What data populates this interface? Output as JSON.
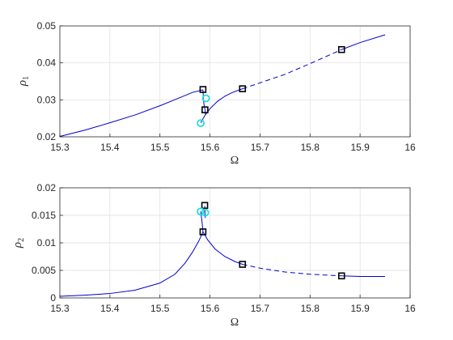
{
  "chart_data": [
    {
      "type": "line",
      "xlabel": "Ω",
      "ylabel": "ρ",
      "ylabel_sub": "1",
      "xlim": [
        15.3,
        16
      ],
      "ylim": [
        0.02,
        0.05
      ],
      "xticks": [
        "15.3",
        "15.4",
        "15.5",
        "15.6",
        "15.7",
        "15.8",
        "15.9",
        "16"
      ],
      "yticks": [
        "0.02",
        "0.03",
        "0.04",
        "0.05"
      ],
      "grid": true,
      "line_color": "#0000cc",
      "series": [
        {
          "style": "solid",
          "points": [
            [
              15.3,
              0.0201
            ],
            [
              15.35,
              0.0218
            ],
            [
              15.4,
              0.0238
            ],
            [
              15.45,
              0.0259
            ],
            [
              15.5,
              0.0284
            ],
            [
              15.54,
              0.0306
            ],
            [
              15.565,
              0.032
            ],
            [
              15.586,
              0.0327
            ]
          ]
        },
        {
          "style": "solid",
          "points": [
            [
              15.586,
              0.0327
            ],
            [
              15.5865,
              0.0313
            ],
            [
              15.587,
              0.0298
            ],
            [
              15.5885,
              0.0284
            ],
            [
              15.59,
              0.0274
            ]
          ]
        },
        {
          "style": "dashed",
          "points": [
            [
              15.59,
              0.0274
            ],
            [
              15.591,
              0.0262
            ],
            [
              15.5915,
              0.0254
            ]
          ]
        },
        {
          "style": "solid",
          "points": [
            [
              15.5815,
              0.0238
            ],
            [
              15.584,
              0.0244
            ],
            [
              15.59,
              0.0258
            ],
            [
              15.6,
              0.0276
            ],
            [
              15.615,
              0.0296
            ],
            [
              15.63,
              0.031
            ],
            [
              15.645,
              0.032
            ],
            [
              15.665,
              0.033
            ]
          ]
        },
        {
          "style": "dashed",
          "points": [
            [
              15.665,
              0.033
            ],
            [
              15.7,
              0.0346
            ],
            [
              15.75,
              0.0369
            ],
            [
              15.8,
              0.0398
            ],
            [
              15.84,
              0.0422
            ],
            [
              15.863,
              0.0436
            ]
          ]
        },
        {
          "style": "solid",
          "points": [
            [
              15.863,
              0.0436
            ],
            [
              15.9,
              0.0455
            ],
            [
              15.95,
              0.0476
            ]
          ]
        }
      ],
      "markers": {
        "squares": {
          "color": "#000000",
          "points": [
            [
              15.586,
              0.0328
            ],
            [
              15.59,
              0.0273
            ],
            [
              15.665,
              0.033
            ],
            [
              15.863,
              0.0436
            ]
          ]
        },
        "circles": {
          "color": "#22dddd",
          "points": [
            [
              15.5815,
              0.0237
            ],
            [
              15.592,
              0.0304
            ]
          ]
        }
      }
    },
    {
      "type": "line",
      "xlabel": "Ω",
      "ylabel": "ρ",
      "ylabel_sub": "2",
      "xlim": [
        15.3,
        16
      ],
      "ylim": [
        0,
        0.02
      ],
      "xticks": [
        "15.3",
        "15.4",
        "15.5",
        "15.6",
        "15.7",
        "15.8",
        "15.9",
        "16"
      ],
      "yticks": [
        "0",
        "0.005",
        "0.01",
        "0.015",
        "0.02"
      ],
      "grid": true,
      "line_color": "#0000cc",
      "series": [
        {
          "style": "solid",
          "points": [
            [
              15.3,
              0.0003
            ],
            [
              15.35,
              0.0005
            ],
            [
              15.4,
              0.0008
            ],
            [
              15.45,
              0.0014
            ],
            [
              15.5,
              0.0027
            ],
            [
              15.53,
              0.0043
            ],
            [
              15.55,
              0.0063
            ],
            [
              15.565,
              0.0083
            ],
            [
              15.578,
              0.0104
            ],
            [
              15.586,
              0.012
            ]
          ]
        },
        {
          "style": "solid",
          "points": [
            [
              15.586,
              0.012
            ],
            [
              15.5845,
              0.0135
            ],
            [
              15.5825,
              0.015
            ],
            [
              15.5815,
              0.0157
            ]
          ]
        },
        {
          "style": "solid",
          "points": [
            [
              15.5895,
              0.0167
            ],
            [
              15.5898,
              0.016
            ],
            [
              15.59,
              0.0154
            ]
          ]
        },
        {
          "style": "dashed",
          "points": [
            [
              15.59,
              0.0154
            ],
            [
              15.5902,
              0.015
            ],
            [
              15.5905,
              0.0145
            ]
          ]
        },
        {
          "style": "solid",
          "points": [
            [
              15.586,
              0.012
            ],
            [
              15.595,
              0.0106
            ],
            [
              15.61,
              0.0089
            ],
            [
              15.63,
              0.0075
            ],
            [
              15.65,
              0.0066
            ],
            [
              15.665,
              0.0061
            ]
          ]
        },
        {
          "style": "dashed",
          "points": [
            [
              15.665,
              0.0061
            ],
            [
              15.7,
              0.0054
            ],
            [
              15.75,
              0.0047
            ],
            [
              15.8,
              0.0043
            ],
            [
              15.863,
              0.004
            ]
          ]
        },
        {
          "style": "solid",
          "points": [
            [
              15.863,
              0.004
            ],
            [
              15.9,
              0.0039
            ],
            [
              15.95,
              0.0039
            ]
          ]
        }
      ],
      "markers": {
        "squares": {
          "color": "#000000",
          "points": [
            [
              15.586,
              0.012
            ],
            [
              15.5895,
              0.0168
            ],
            [
              15.665,
              0.0061
            ],
            [
              15.863,
              0.004
            ]
          ]
        },
        "circles": {
          "color": "#22dddd",
          "points": [
            [
              15.5815,
              0.0157
            ],
            [
              15.5905,
              0.0155
            ]
          ]
        }
      }
    }
  ]
}
